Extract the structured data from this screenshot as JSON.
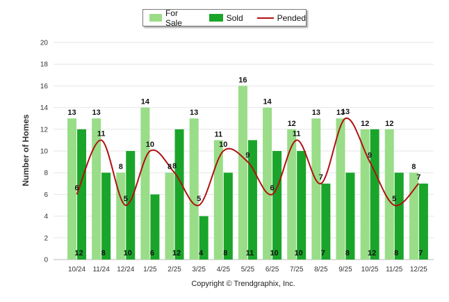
{
  "chart_data": {
    "type": "bar",
    "categories": [
      "10/24",
      "11/24",
      "12/24",
      "1/25",
      "2/25",
      "3/25",
      "4/25",
      "5/25",
      "6/25",
      "7/25",
      "8/25",
      "9/25",
      "10/25",
      "11/25",
      "12/25"
    ],
    "series": [
      {
        "name": "For Sale",
        "type": "bar",
        "color": "#99dd88",
        "values": [
          13,
          13,
          8,
          14,
          8,
          13,
          11,
          16,
          14,
          12,
          13,
          13,
          12,
          12,
          8
        ]
      },
      {
        "name": "Sold",
        "type": "bar",
        "color": "#1aa52a",
        "values": [
          12,
          8,
          10,
          6,
          12,
          4,
          8,
          11,
          10,
          10,
          7,
          8,
          12,
          8,
          7
        ]
      },
      {
        "name": "Pended",
        "type": "line",
        "color": "#b01010",
        "values": [
          6,
          11,
          5,
          10,
          8,
          5,
          10,
          9,
          6,
          11,
          7,
          13,
          9,
          5,
          7
        ]
      }
    ],
    "ylabel": "Number of Homes",
    "ylim": [
      0,
      20
    ],
    "yticks": [
      0,
      2,
      4,
      6,
      8,
      10,
      12,
      14,
      16,
      18,
      20
    ],
    "grid": true,
    "legend": "top-center"
  },
  "copyright": "Copyright © Trendgraphix, Inc."
}
